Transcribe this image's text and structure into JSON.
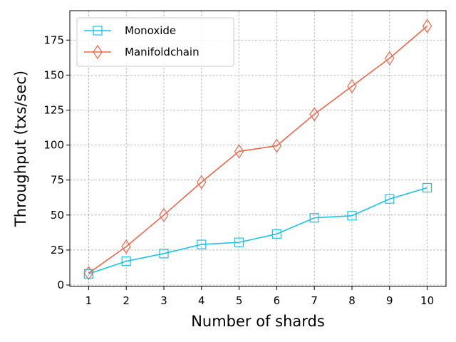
{
  "chart_data": {
    "type": "line",
    "title": "",
    "xlabel": "Number of shards",
    "ylabel": "Throughput (txs/sec)",
    "x": [
      1,
      2,
      3,
      4,
      5,
      6,
      7,
      8,
      9,
      10
    ],
    "xlim": [
      0.5,
      10.5
    ],
    "ylim": [
      -1,
      196
    ],
    "yticks": [
      0,
      25,
      50,
      75,
      100,
      125,
      150,
      175
    ],
    "grid": true,
    "grid_style": "dashed",
    "legend_position": "top-left",
    "series": [
      {
        "name": "Monoxide",
        "color": "#1AC2E8",
        "marker": "square",
        "values": [
          8,
          17,
          22.5,
          29,
          30.5,
          36.5,
          48,
          49.5,
          61.5,
          69.5
        ]
      },
      {
        "name": "Manifoldchain",
        "color": "#F0654A",
        "marker": "diamond",
        "values": [
          8.5,
          27.5,
          50,
          73.5,
          95.5,
          99.5,
          122,
          142,
          162,
          185
        ]
      }
    ]
  }
}
